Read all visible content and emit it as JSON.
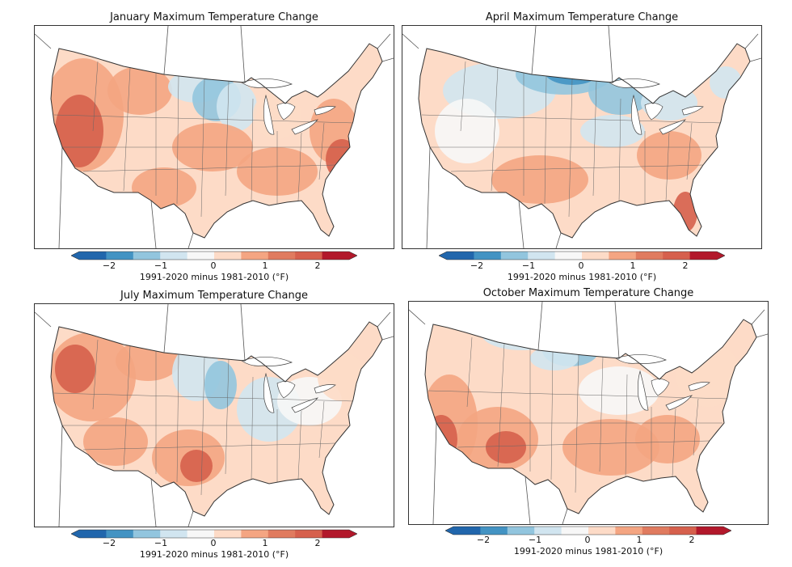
{
  "panels": [
    {
      "title": "January Maximum Temperature Change",
      "scheme": "jan"
    },
    {
      "title": "April Maximum Temperature Change",
      "scheme": "apr"
    },
    {
      "title": "July Maximum Temperature Change",
      "scheme": "jul"
    },
    {
      "title": "October Maximum Temperature Change",
      "scheme": "oct"
    }
  ],
  "colorbar": {
    "label": "1991-2020 minus 1981-2010 (°F)",
    "ticks": [
      "−2",
      "−1",
      "0",
      "1",
      "2"
    ],
    "range": [
      -2.5,
      2.5
    ],
    "colors": [
      "#2166ac",
      "#4393c3",
      "#92c5de",
      "#d1e5f0",
      "#f7f7f7",
      "#fddbc7",
      "#f4a582",
      "#e07b5f",
      "#d6604d",
      "#b2182b"
    ]
  },
  "legend_colors": {
    "strong_warm": "#d6604d",
    "warm": "#f4a582",
    "light_warm": "#fddbc7",
    "neutral": "#f7f7f7",
    "light_cool": "#d1e5f0",
    "cool": "#92c5de",
    "strong_cool": "#4393c3",
    "deep_cool": "#2166ac"
  }
}
